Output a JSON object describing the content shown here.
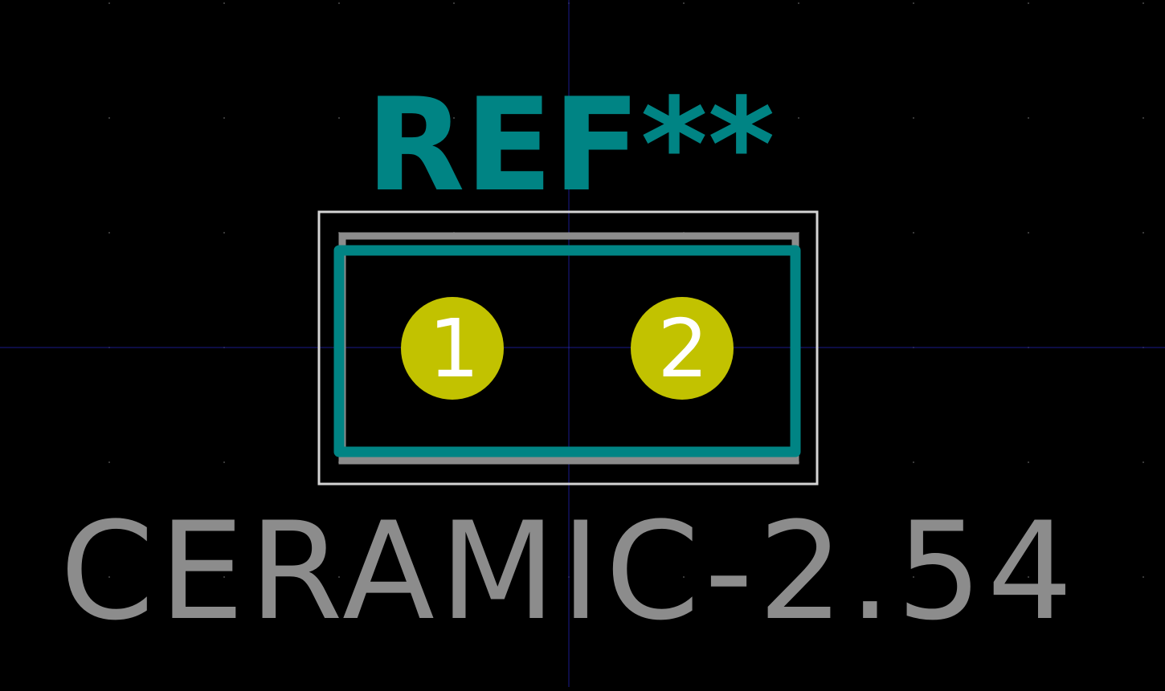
{
  "footprint": {
    "reference": "REF**",
    "value": "CERAMIC-2.54",
    "pads": [
      {
        "number": "1"
      },
      {
        "number": "2"
      }
    ]
  },
  "colors": {
    "background": "#000000",
    "grid_dot": "#4a4a4a",
    "crosshair": "#1a1a8a",
    "reference_text": "#008484",
    "silkscreen_outline": "#008484",
    "fab_outline": "#8c8c8c",
    "courtyard": "#d4d4d4",
    "pad_fill": "#c2c200",
    "pad_number": "#ffffff",
    "value_text": "#8c8c8c"
  },
  "layers": [
    "F.SilkS",
    "F.Fab",
    "F.CrtYd",
    "F.Cu"
  ]
}
